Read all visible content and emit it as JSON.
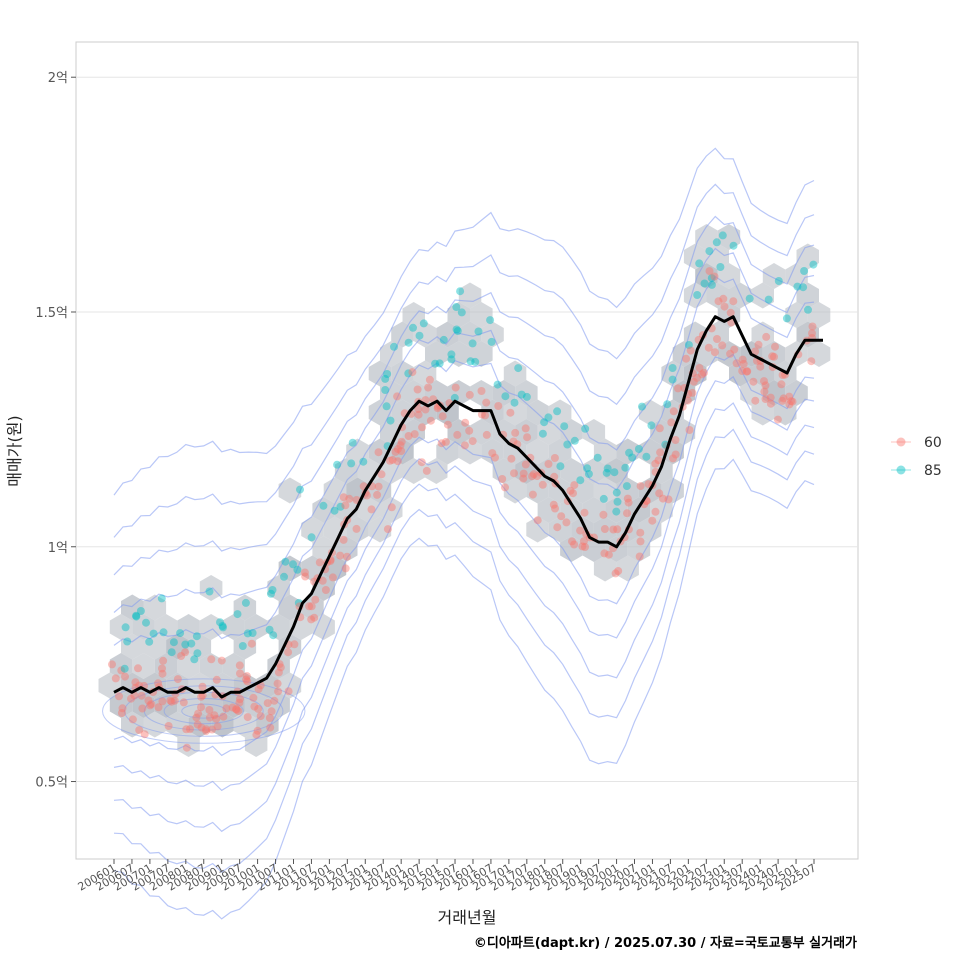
{
  "chart_data": {
    "type": "scatter",
    "xlabel": "거래년월",
    "ylabel": "매매가(원)",
    "caption": "©디아파트(dapt.kr) / 2025.07.30 / 자료=국토교통부 실거래가",
    "ylim": [
      0.335,
      2.075
    ],
    "y_unit": "억",
    "y_ticks": [
      {
        "value": 0.5,
        "label": "0.5억"
      },
      {
        "value": 1.0,
        "label": "1억"
      },
      {
        "value": 1.5,
        "label": "1.5억"
      },
      {
        "value": 2.0,
        "label": "2억"
      }
    ],
    "x_ticks": [
      "200601",
      "200607",
      "200701",
      "200707",
      "200801",
      "200807",
      "200901",
      "200907",
      "201001",
      "201007",
      "201101",
      "201107",
      "201201",
      "201207",
      "201301",
      "201307",
      "201401",
      "201407",
      "201501",
      "201507",
      "201601",
      "201607",
      "201701",
      "201707",
      "201801",
      "201807",
      "201901",
      "201907",
      "202001",
      "202007",
      "202101",
      "202107",
      "202201",
      "202207",
      "202301",
      "202307",
      "202401",
      "202407",
      "202501",
      "202507"
    ],
    "grid": true,
    "legend_position": "right",
    "colors": {
      "s60": "#F8766D",
      "s85": "#00BFC4",
      "trend": "#000000",
      "contour": "#8099F0",
      "hex": "#bcc1c8",
      "panel_border": "#cccccc",
      "grid": "#e5e5e5"
    },
    "series": [
      {
        "name": "60",
        "color": "#F8766D"
      },
      {
        "name": "85",
        "color": "#00BFC4"
      }
    ],
    "trend_line": [
      [
        0,
        0.69
      ],
      [
        3,
        0.7
      ],
      [
        6,
        0.69
      ],
      [
        9,
        0.7
      ],
      [
        12,
        0.69
      ],
      [
        15,
        0.7
      ],
      [
        18,
        0.69
      ],
      [
        21,
        0.69
      ],
      [
        24,
        0.7
      ],
      [
        27,
        0.69
      ],
      [
        30,
        0.69
      ],
      [
        33,
        0.7
      ],
      [
        36,
        0.68
      ],
      [
        39,
        0.69
      ],
      [
        42,
        0.69
      ],
      [
        45,
        0.7
      ],
      [
        48,
        0.71
      ],
      [
        51,
        0.72
      ],
      [
        54,
        0.75
      ],
      [
        57,
        0.79
      ],
      [
        60,
        0.83
      ],
      [
        63,
        0.88
      ],
      [
        66,
        0.9
      ],
      [
        69,
        0.94
      ],
      [
        72,
        0.98
      ],
      [
        75,
        1.02
      ],
      [
        78,
        1.06
      ],
      [
        81,
        1.08
      ],
      [
        84,
        1.12
      ],
      [
        87,
        1.15
      ],
      [
        90,
        1.18
      ],
      [
        93,
        1.22
      ],
      [
        96,
        1.26
      ],
      [
        99,
        1.29
      ],
      [
        102,
        1.31
      ],
      [
        105,
        1.3
      ],
      [
        108,
        1.31
      ],
      [
        111,
        1.29
      ],
      [
        114,
        1.31
      ],
      [
        117,
        1.3
      ],
      [
        120,
        1.29
      ],
      [
        123,
        1.29
      ],
      [
        126,
        1.29
      ],
      [
        129,
        1.24
      ],
      [
        132,
        1.22
      ],
      [
        135,
        1.21
      ],
      [
        138,
        1.19
      ],
      [
        141,
        1.17
      ],
      [
        144,
        1.15
      ],
      [
        147,
        1.14
      ],
      [
        150,
        1.12
      ],
      [
        153,
        1.09
      ],
      [
        156,
        1.06
      ],
      [
        159,
        1.02
      ],
      [
        162,
        1.01
      ],
      [
        165,
        1.01
      ],
      [
        168,
        1.0
      ],
      [
        171,
        1.03
      ],
      [
        174,
        1.07
      ],
      [
        177,
        1.1
      ],
      [
        180,
        1.13
      ],
      [
        183,
        1.17
      ],
      [
        186,
        1.23
      ],
      [
        189,
        1.28
      ],
      [
        192,
        1.35
      ],
      [
        195,
        1.42
      ],
      [
        198,
        1.46
      ],
      [
        201,
        1.49
      ],
      [
        204,
        1.48
      ],
      [
        207,
        1.49
      ],
      [
        210,
        1.45
      ],
      [
        213,
        1.41
      ],
      [
        216,
        1.4
      ],
      [
        219,
        1.39
      ],
      [
        222,
        1.38
      ],
      [
        225,
        1.37
      ],
      [
        228,
        1.41
      ],
      [
        231,
        1.44
      ],
      [
        234,
        1.44
      ],
      [
        237,
        1.44
      ]
    ]
  }
}
